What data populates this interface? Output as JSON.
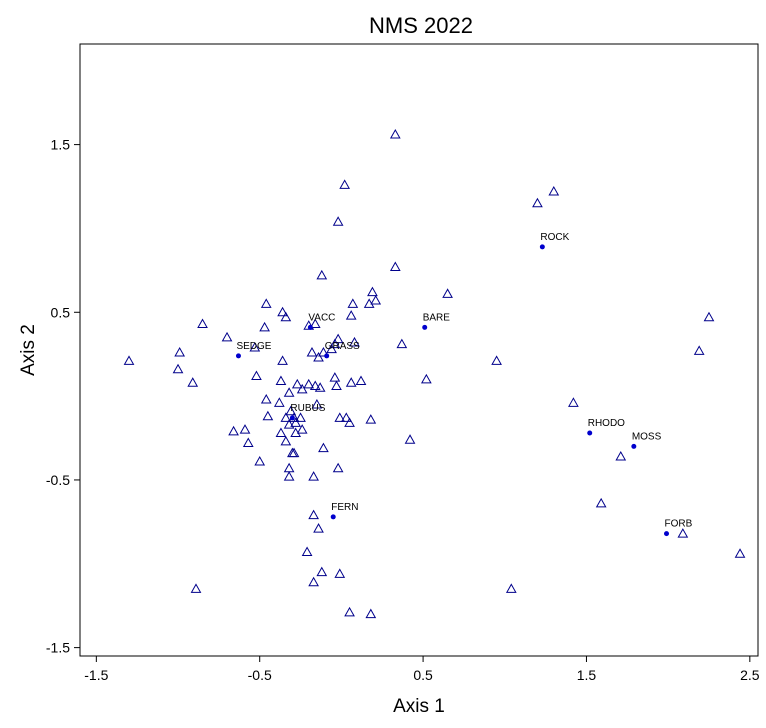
{
  "chart_data": {
    "type": "scatter",
    "title": "NMS 2022",
    "xlabel": "Axis 1",
    "ylabel": "Axis 2",
    "xlim": [
      -1.6,
      2.55
    ],
    "ylim": [
      -1.55,
      2.1
    ],
    "xticks": [
      -1.5,
      -0.5,
      0.5,
      1.5,
      2.5
    ],
    "xtick_labels": [
      "-1.5",
      "-0.5",
      "0.5",
      "1.5",
      "2.5"
    ],
    "yticks": [
      -1.5,
      -0.5,
      0.5,
      1.5
    ],
    "ytick_labels": [
      "-1.5",
      "-0.5",
      "0.5",
      "1.5"
    ],
    "grid": false,
    "colors": {
      "points": "#00008b",
      "vectors": "#0000cd",
      "axes": "#000000"
    },
    "series": [
      {
        "marker": "triangle-open",
        "points": [
          [
            0.33,
            1.56
          ],
          [
            0.02,
            1.26
          ],
          [
            1.2,
            1.15
          ],
          [
            1.3,
            1.22
          ],
          [
            -0.02,
            1.04
          ],
          [
            0.33,
            0.77
          ],
          [
            -0.12,
            0.72
          ],
          [
            0.65,
            0.61
          ],
          [
            0.19,
            0.62
          ],
          [
            0.21,
            0.57
          ],
          [
            0.17,
            0.55
          ],
          [
            0.07,
            0.55
          ],
          [
            0.06,
            0.48
          ],
          [
            -0.46,
            0.55
          ],
          [
            -0.36,
            0.5
          ],
          [
            -0.34,
            0.47
          ],
          [
            -0.85,
            0.43
          ],
          [
            -0.16,
            0.43
          ],
          [
            -0.2,
            0.42
          ],
          [
            -0.47,
            0.41
          ],
          [
            -0.7,
            0.35
          ],
          [
            0.08,
            0.32
          ],
          [
            -0.02,
            0.34
          ],
          [
            -0.04,
            0.31
          ],
          [
            -0.06,
            0.28
          ],
          [
            -0.11,
            0.26
          ],
          [
            -0.18,
            0.26
          ],
          [
            -0.53,
            0.29
          ],
          [
            -0.99,
            0.26
          ],
          [
            -1.3,
            0.21
          ],
          [
            0.37,
            0.31
          ],
          [
            -0.14,
            0.23
          ],
          [
            -0.36,
            0.21
          ],
          [
            0.95,
            0.21
          ],
          [
            -1.0,
            0.16
          ],
          [
            -0.52,
            0.12
          ],
          [
            -0.37,
            0.09
          ],
          [
            -0.27,
            0.07
          ],
          [
            -0.2,
            0.07
          ],
          [
            -0.16,
            0.06
          ],
          [
            -0.13,
            0.05
          ],
          [
            -0.24,
            0.04
          ],
          [
            -0.04,
            0.11
          ],
          [
            0.06,
            0.08
          ],
          [
            0.12,
            0.09
          ],
          [
            0.52,
            0.1
          ],
          [
            -0.91,
            0.08
          ],
          [
            -0.03,
            0.06
          ],
          [
            -0.32,
            0.02
          ],
          [
            -0.46,
            -0.02
          ],
          [
            -0.38,
            -0.04
          ],
          [
            -0.15,
            -0.05
          ],
          [
            -0.31,
            -0.09
          ],
          [
            -0.45,
            -0.12
          ],
          [
            -0.34,
            -0.13
          ],
          [
            -0.29,
            -0.13
          ],
          [
            -0.25,
            -0.13
          ],
          [
            -0.28,
            -0.16
          ],
          [
            -0.32,
            -0.17
          ],
          [
            -0.24,
            -0.2
          ],
          [
            -0.37,
            -0.22
          ],
          [
            -0.66,
            -0.21
          ],
          [
            -0.59,
            -0.2
          ],
          [
            -0.28,
            -0.22
          ],
          [
            -0.34,
            -0.27
          ],
          [
            -0.57,
            -0.28
          ],
          [
            -0.11,
            -0.31
          ],
          [
            -0.3,
            -0.34
          ],
          [
            -0.29,
            -0.34
          ],
          [
            -0.5,
            -0.39
          ],
          [
            -0.01,
            -0.13
          ],
          [
            0.03,
            -0.13
          ],
          [
            0.05,
            -0.16
          ],
          [
            0.18,
            -0.14
          ],
          [
            0.42,
            -0.26
          ],
          [
            1.42,
            -0.04
          ],
          [
            -0.02,
            -0.43
          ],
          [
            -0.32,
            -0.43
          ],
          [
            -0.32,
            -0.48
          ],
          [
            -0.17,
            -0.48
          ],
          [
            -0.17,
            -0.71
          ],
          [
            -0.14,
            -0.79
          ],
          [
            -0.21,
            -0.93
          ],
          [
            -0.12,
            -1.05
          ],
          [
            -0.01,
            -1.06
          ],
          [
            -0.17,
            -1.11
          ],
          [
            -0.89,
            -1.15
          ],
          [
            0.05,
            -1.29
          ],
          [
            0.18,
            -1.3
          ],
          [
            1.04,
            -1.15
          ],
          [
            2.25,
            0.47
          ],
          [
            2.19,
            0.27
          ],
          [
            1.71,
            -0.36
          ],
          [
            1.59,
            -0.64
          ],
          [
            2.09,
            -0.82
          ],
          [
            2.44,
            -0.94
          ]
        ]
      }
    ],
    "vectors": [
      {
        "label": "ROCK",
        "x": 1.23,
        "y": 0.89
      },
      {
        "label": "BARE",
        "x": 0.51,
        "y": 0.41
      },
      {
        "label": "VACC",
        "x": -0.19,
        "y": 0.41
      },
      {
        "label": "SEDGE",
        "x": -0.63,
        "y": 0.24
      },
      {
        "label": "GRASS",
        "x": -0.09,
        "y": 0.24
      },
      {
        "label": "RUBUS",
        "x": -0.3,
        "y": -0.13
      },
      {
        "label": "RHODO",
        "x": 1.52,
        "y": -0.22
      },
      {
        "label": "MOSS",
        "x": 1.79,
        "y": -0.3
      },
      {
        "label": "FERN",
        "x": -0.05,
        "y": -0.72
      },
      {
        "label": "FORB",
        "x": 1.99,
        "y": -0.82
      }
    ]
  }
}
